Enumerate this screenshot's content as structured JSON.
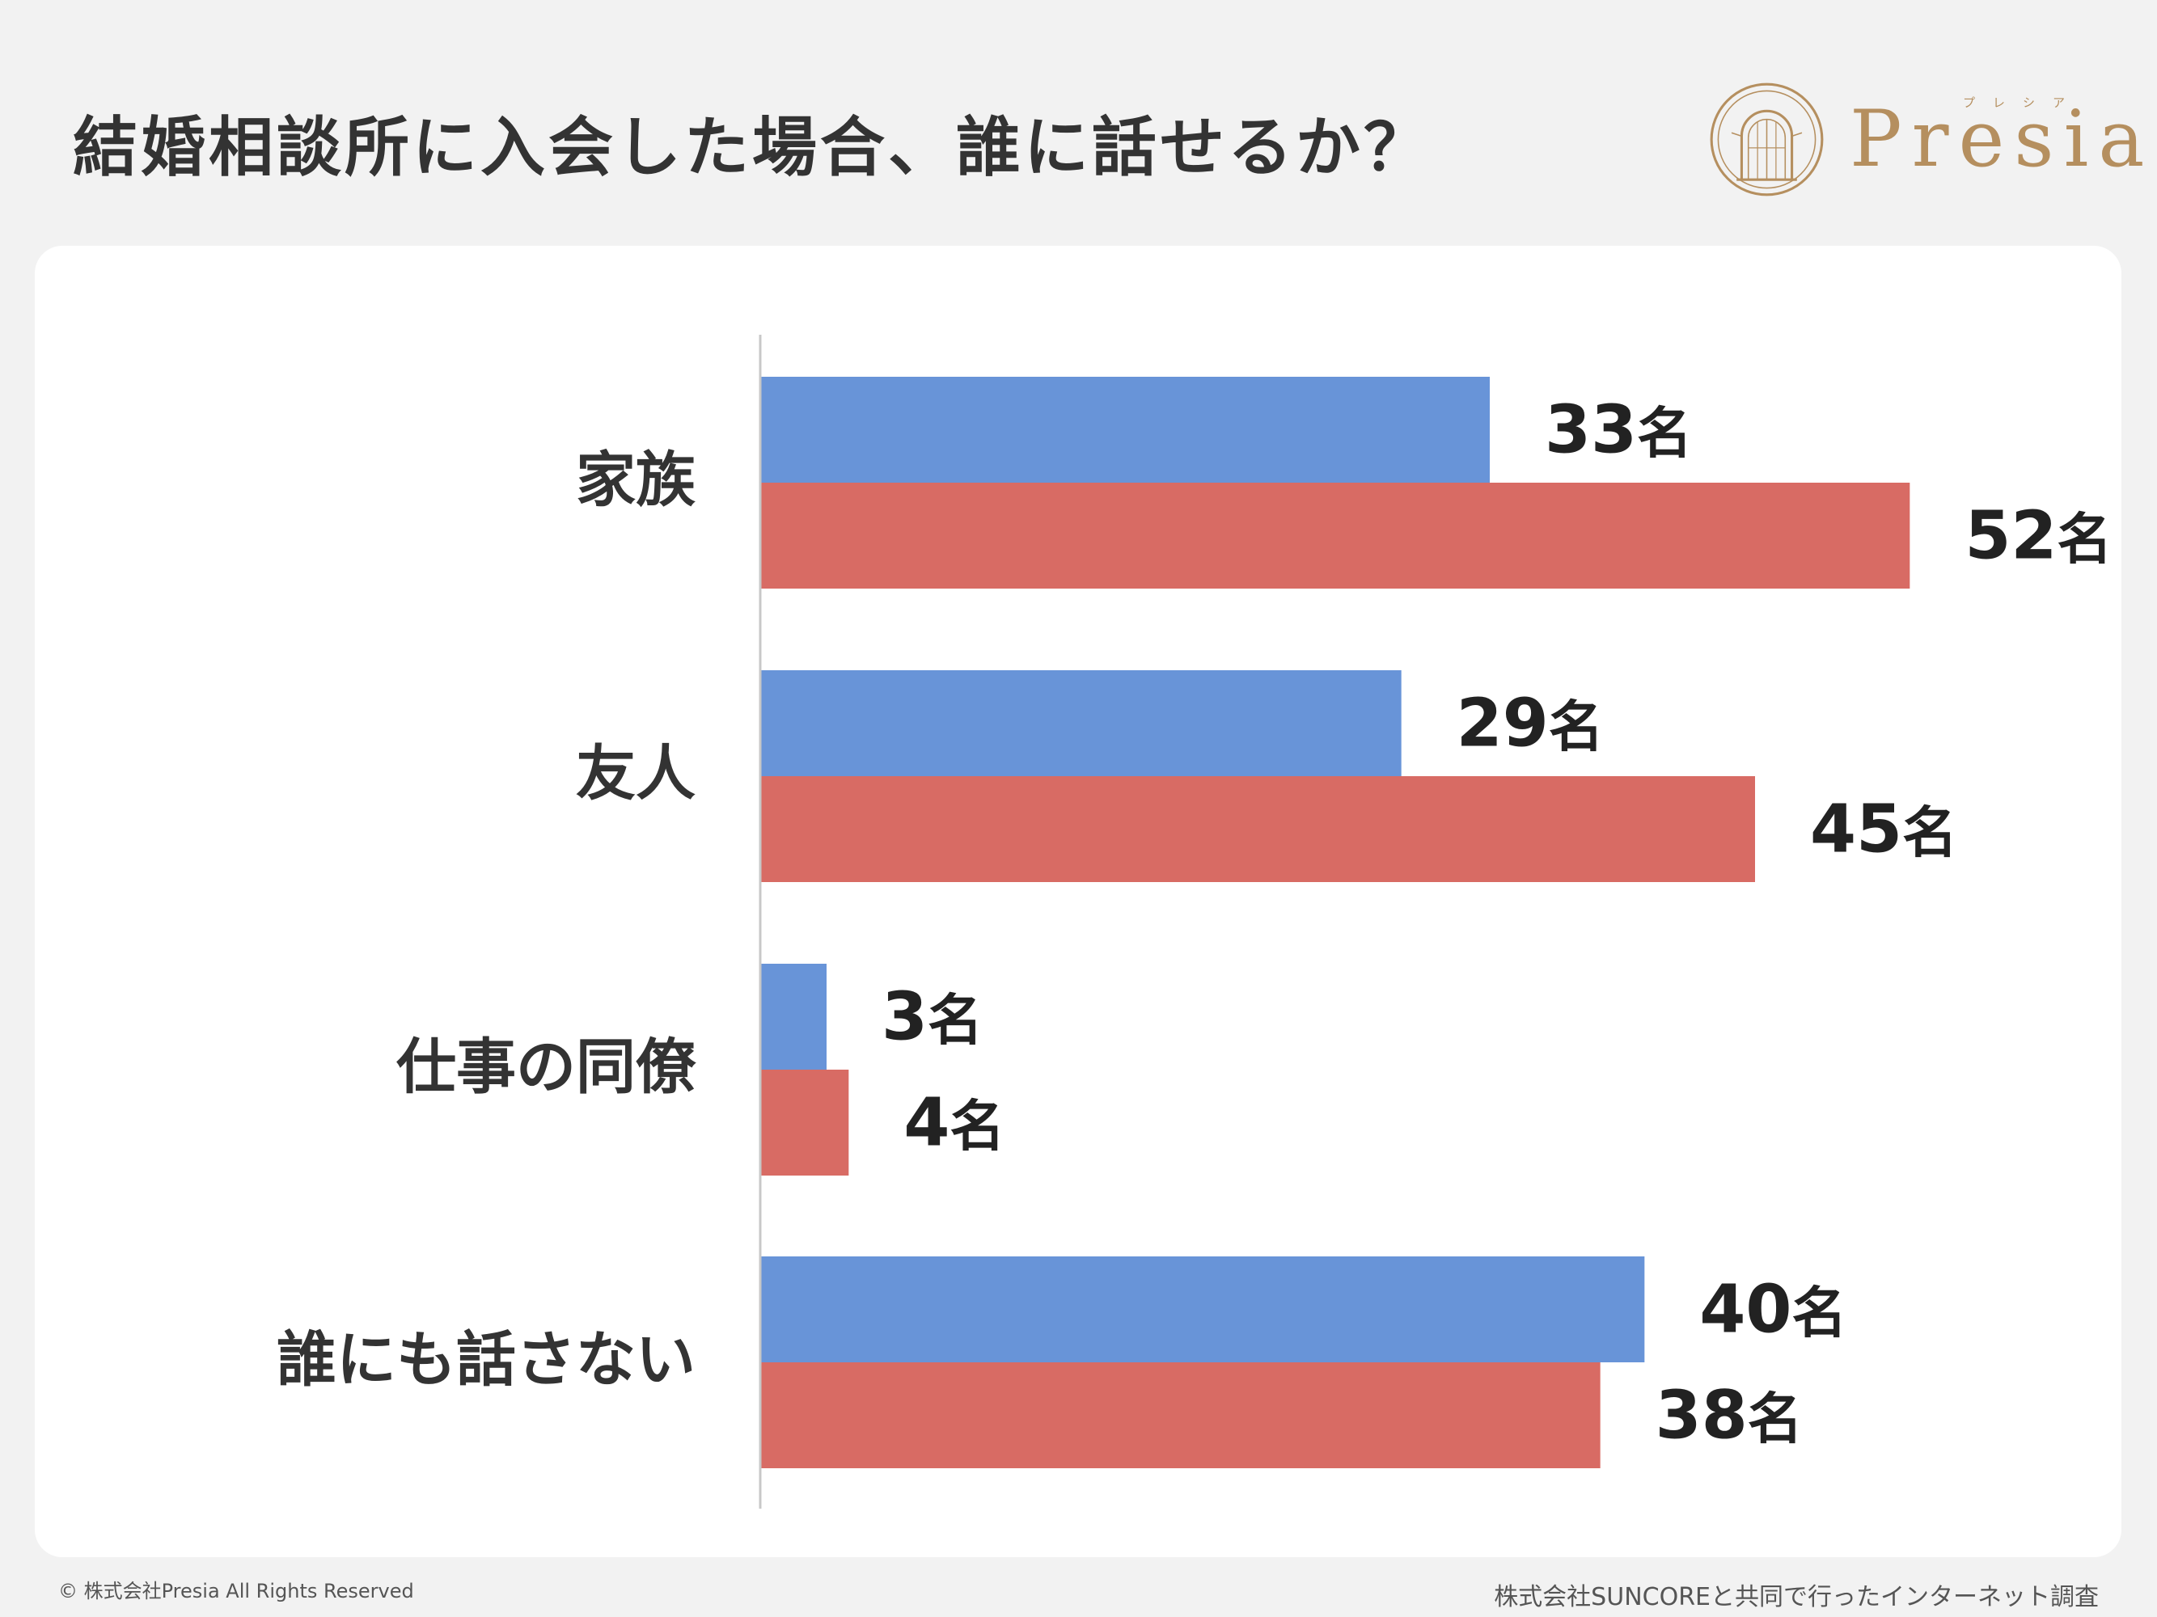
{
  "header": {
    "title": "結婚相談所に入会した場合、誰に話せるか？"
  },
  "logo": {
    "ruby": "プレシア",
    "word": "Presia",
    "color": "#b58f5f"
  },
  "footer": {
    "copyright": "© 株式会社Presia All Rights Reserved",
    "source": "株式会社SUNCOREと共同で行ったインターネット調査"
  },
  "chart_data": {
    "type": "bar",
    "orientation": "horizontal",
    "categories": [
      "家族",
      "友人",
      "仕事の同僚",
      "誰にも話さない"
    ],
    "series": [
      {
        "color": "#6894d8",
        "values": [
          33,
          29,
          3,
          40
        ]
      },
      {
        "color": "#d86b64",
        "values": [
          52,
          45,
          4,
          38
        ]
      }
    ],
    "value_suffix": "名",
    "xlim": [
      0,
      60
    ],
    "grid": false,
    "legend": "none"
  }
}
